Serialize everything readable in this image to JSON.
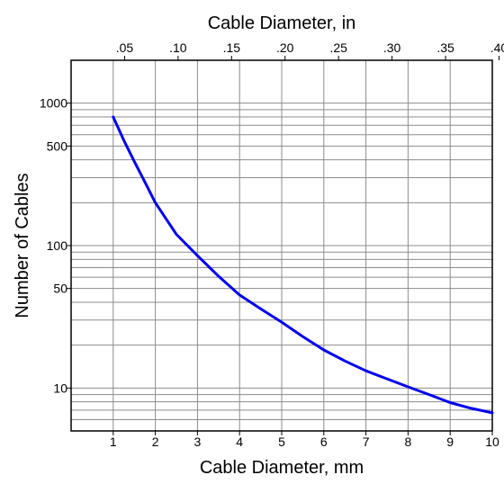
{
  "chart_data": {
    "type": "line",
    "xlabel": "Cable Diameter, mm",
    "x2label": "Cable Diameter, in",
    "ylabel": "Number of Cables",
    "xlim": [
      0,
      10
    ],
    "ylim": [
      5,
      2000
    ],
    "y_scale": "log",
    "grid": true,
    "x_ticks": [
      1,
      2,
      3,
      4,
      5,
      6,
      7,
      8,
      9,
      10
    ],
    "x_tick_labels": [
      "1",
      "2",
      "3",
      "4",
      "5",
      "6",
      "7",
      "8",
      "9",
      "10"
    ],
    "x2_ticks_in": [
      0.05,
      0.1,
      0.15,
      0.2,
      0.25,
      0.3,
      0.35,
      0.4
    ],
    "x2_tick_labels": [
      ".05",
      ".10",
      ".15",
      ".20",
      ".25",
      ".30",
      ".35",
      ".40"
    ],
    "y_tick_labels": [
      {
        "value": 1000,
        "label": "1000"
      },
      {
        "value": 500,
        "label": "500"
      },
      {
        "value": 100,
        "label": "100"
      },
      {
        "value": 50,
        "label": "50"
      },
      {
        "value": 10,
        "label": "10"
      }
    ],
    "series": [
      {
        "color": "#0000ee",
        "x": [
          1.0,
          1.25,
          1.5,
          1.75,
          2.0,
          2.5,
          3.0,
          3.5,
          4.0,
          4.5,
          5.0,
          5.5,
          6.0,
          6.5,
          7.0,
          7.5,
          8.0,
          8.5,
          9.0,
          9.5,
          10.0
        ],
        "y": [
          800,
          550,
          390,
          280,
          200,
          120,
          85,
          61,
          45,
          36,
          29,
          23,
          18.5,
          15.5,
          13.2,
          11.6,
          10.2,
          9.0,
          7.9,
          7.2,
          6.7
        ]
      }
    ]
  }
}
